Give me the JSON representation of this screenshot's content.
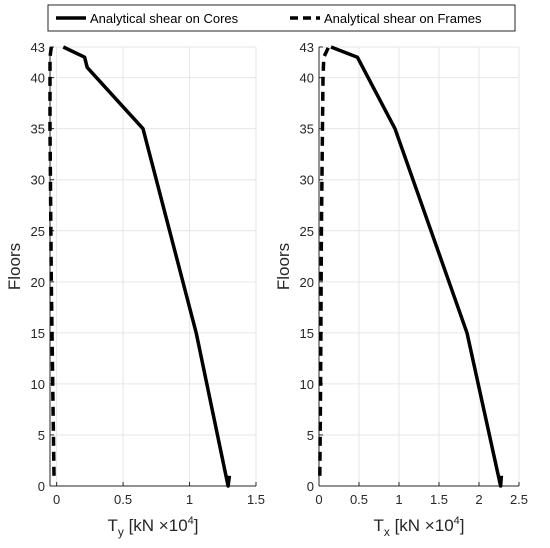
{
  "legend": {
    "entries": [
      {
        "label": "Analytical shear on Cores",
        "style": "solid"
      },
      {
        "label": "Analytical shear on Frames",
        "style": "dashed"
      }
    ]
  },
  "chart_data": [
    {
      "type": "line",
      "ylabel": "Floors",
      "xlabel_main": "T",
      "xlabel_sub": "y",
      "xlabel_unit": "[kN ×10",
      "xlabel_exp": "4",
      "xlabel_close": "]",
      "xlim": [
        -0.05,
        1.5
      ],
      "ylim": [
        0,
        43
      ],
      "xticks": [
        0,
        0.5,
        1,
        1.5
      ],
      "xtick_labels": [
        "0",
        "0.5",
        "1",
        "1.5"
      ],
      "yticks": [
        0,
        5,
        10,
        15,
        20,
        25,
        30,
        35,
        40,
        43
      ],
      "ytick_labels": [
        "0",
        "5",
        "10",
        "15",
        "20",
        "25",
        "30",
        "35",
        "40",
        "43"
      ],
      "grid": true,
      "series": [
        {
          "name": "Analytical shear on Cores",
          "style": "solid",
          "x": [
            1.3,
            1.29,
            1.05,
            0.65,
            0.23,
            0.21,
            0.05
          ],
          "y": [
            1,
            0,
            15,
            35,
            41,
            42,
            43
          ]
        },
        {
          "name": "Analytical shear on Frames",
          "style": "dashed",
          "x": [
            -0.02,
            -0.04,
            -0.05,
            -0.05,
            -0.04
          ],
          "y": [
            1,
            20,
            35,
            42,
            43
          ]
        }
      ]
    },
    {
      "type": "line",
      "ylabel": "Floors",
      "xlabel_main": "T",
      "xlabel_sub": "x",
      "xlabel_unit": "[kN ×10",
      "xlabel_exp": "4",
      "xlabel_close": "]",
      "xlim": [
        0,
        2.5
      ],
      "ylim": [
        0,
        43
      ],
      "xticks": [
        0,
        0.5,
        1,
        1.5,
        2,
        2.5
      ],
      "xtick_labels": [
        "0",
        "0.5",
        "1",
        "1.5",
        "2",
        "2.5"
      ],
      "yticks": [
        0,
        5,
        10,
        15,
        20,
        25,
        30,
        35,
        40,
        43
      ],
      "ytick_labels": [
        "0",
        "5",
        "10",
        "15",
        "20",
        "25",
        "30",
        "35",
        "40",
        "43"
      ],
      "grid": true,
      "series": [
        {
          "name": "Analytical shear on Cores",
          "style": "solid",
          "x": [
            2.28,
            2.27,
            1.85,
            0.95,
            0.48,
            0.15
          ],
          "y": [
            1,
            0,
            15,
            35,
            42,
            43
          ]
        },
        {
          "name": "Analytical shear on Frames",
          "style": "dashed",
          "x": [
            0.01,
            0.02,
            0.03,
            0.05,
            0.06,
            0.12
          ],
          "y": [
            1,
            10,
            25,
            40,
            42,
            43
          ]
        }
      ]
    }
  ]
}
